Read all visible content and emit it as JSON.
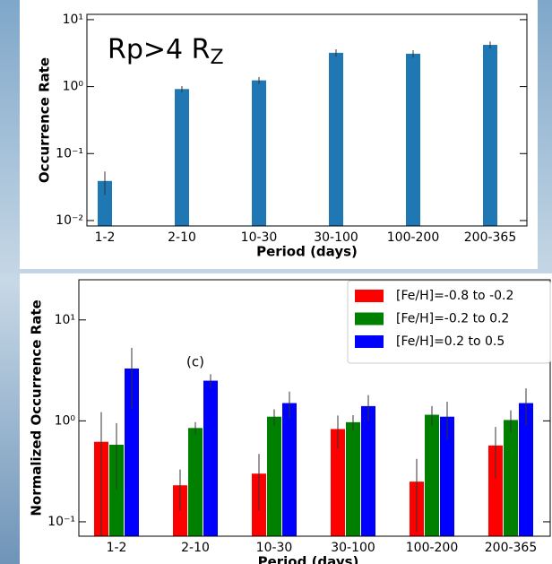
{
  "chart_data": [
    {
      "type": "bar",
      "yscale": "log",
      "annotation": {
        "text": "Rp>4 R",
        "subscript": "Z"
      },
      "x_label": "Period (days)",
      "y_label": "Occurrence Rate",
      "categories": [
        "1-2",
        "2-10",
        "10-30",
        "30-100",
        "100-200",
        "200-365"
      ],
      "values": [
        0.039,
        0.92,
        1.24,
        3.2,
        3.1,
        4.2
      ],
      "errors": [
        0.015,
        0.1,
        0.15,
        0.4,
        0.4,
        0.5
      ],
      "color": "#1f77b4",
      "ylim": [
        0.0083,
        12
      ],
      "yticks": [
        {
          "value": 0.01,
          "label": "10⁻²"
        },
        {
          "value": 0.1,
          "label": "10⁻¹"
        },
        {
          "value": 1,
          "label": "10⁰"
        },
        {
          "value": 10,
          "label": "10¹"
        }
      ]
    },
    {
      "type": "bar",
      "yscale": "log",
      "annotation": {
        "text": "(c)"
      },
      "x_label": "Period (days)",
      "y_label": "Normalized Occurrence Rate",
      "categories": [
        "1-2",
        "2-10",
        "10-30",
        "30-100",
        "100-200",
        "200-365"
      ],
      "series": [
        {
          "name": "[Fe/H]=-0.8 to -0.2",
          "color": "#ff0000",
          "values": [
            0.62,
            0.23,
            0.3,
            0.83,
            0.25,
            0.57
          ],
          "errors": [
            0.6,
            0.1,
            0.17,
            0.3,
            0.17,
            0.3
          ]
        },
        {
          "name": "[Fe/H]=-0.2 to 0.2",
          "color": "#008000",
          "values": [
            0.58,
            0.85,
            1.1,
            0.97,
            1.15,
            1.02
          ],
          "errors": [
            0.37,
            0.12,
            0.2,
            0.17,
            0.25,
            0.25
          ]
        },
        {
          "name": "[Fe/H]=0.2 to 0.5",
          "color": "#0000ff",
          "values": [
            3.3,
            2.5,
            1.5,
            1.4,
            1.1,
            1.5
          ],
          "errors": [
            2,
            0.4,
            0.45,
            0.4,
            0.45,
            0.6
          ]
        }
      ],
      "legend": "upper right",
      "ylim": [
        0.072,
        25
      ],
      "yticks": [
        {
          "value": 0.1,
          "label": "10⁻¹"
        },
        {
          "value": 1,
          "label": "10⁰"
        },
        {
          "value": 10,
          "label": "10¹"
        }
      ]
    }
  ]
}
